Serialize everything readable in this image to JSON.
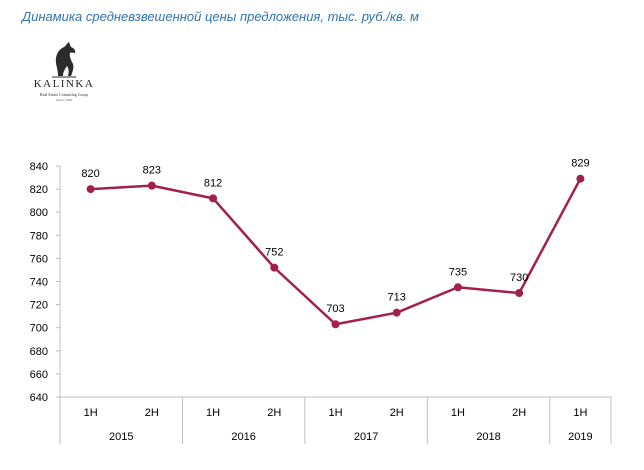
{
  "logo": {
    "word": "KALINKA",
    "subtitle": "Real Estate Consulting Group",
    "since": "Since 1999"
  },
  "chart_data": {
    "type": "line",
    "title": "Динамика средневзвешенной цены предложения, тыс. руб./кв. м",
    "categories": [
      "1H",
      "2H",
      "1H",
      "2H",
      "1H",
      "2H",
      "1H",
      "2H",
      "1H"
    ],
    "groups": [
      {
        "label": "2015",
        "count": 2
      },
      {
        "label": "2016",
        "count": 2
      },
      {
        "label": "2017",
        "count": 2
      },
      {
        "label": "2018",
        "count": 2
      },
      {
        "label": "2019",
        "count": 1
      }
    ],
    "values": [
      820,
      823,
      812,
      752,
      703,
      713,
      735,
      730,
      829
    ],
    "ylim": [
      640,
      840
    ],
    "yticks": [
      640,
      660,
      680,
      700,
      720,
      740,
      760,
      780,
      800,
      820,
      840
    ],
    "xlabel": "",
    "ylabel": "",
    "grid": false,
    "colors": {
      "line": "#a32148",
      "axis": "#bfbfbf",
      "title": "#2e74b5"
    }
  }
}
